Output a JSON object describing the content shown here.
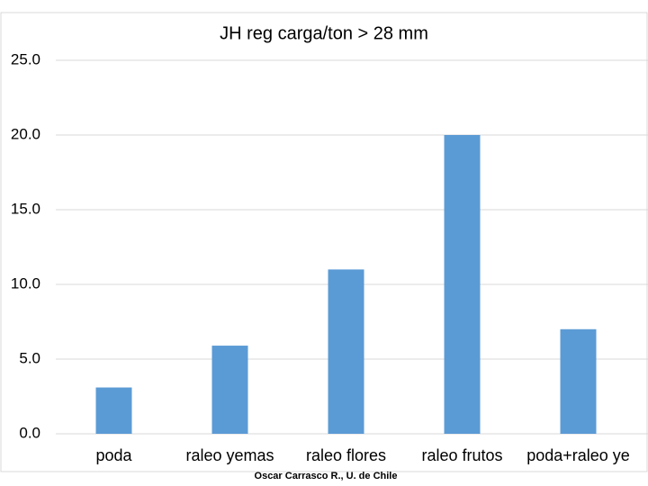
{
  "chart_data": {
    "type": "bar",
    "title": "JH reg carga/ton > 28 mm",
    "categories": [
      "poda",
      "raleo yemas",
      "raleo flores",
      "raleo frutos",
      "poda+raleo ye"
    ],
    "values": [
      3.1,
      5.9,
      11.0,
      20.0,
      7.0
    ],
    "color": "#5b9bd5",
    "ylim": [
      0,
      25
    ],
    "yticks": [
      {
        "value": 0,
        "label": "0.0"
      },
      {
        "value": 5,
        "label": "5.0"
      },
      {
        "value": 10,
        "label": "10.0"
      },
      {
        "value": 15,
        "label": "15.0"
      },
      {
        "value": 20,
        "label": "20.0"
      },
      {
        "value": 25,
        "label": "25.0"
      }
    ],
    "grid": true,
    "footer": "Oscar Carrasco R., U. de Chile"
  }
}
